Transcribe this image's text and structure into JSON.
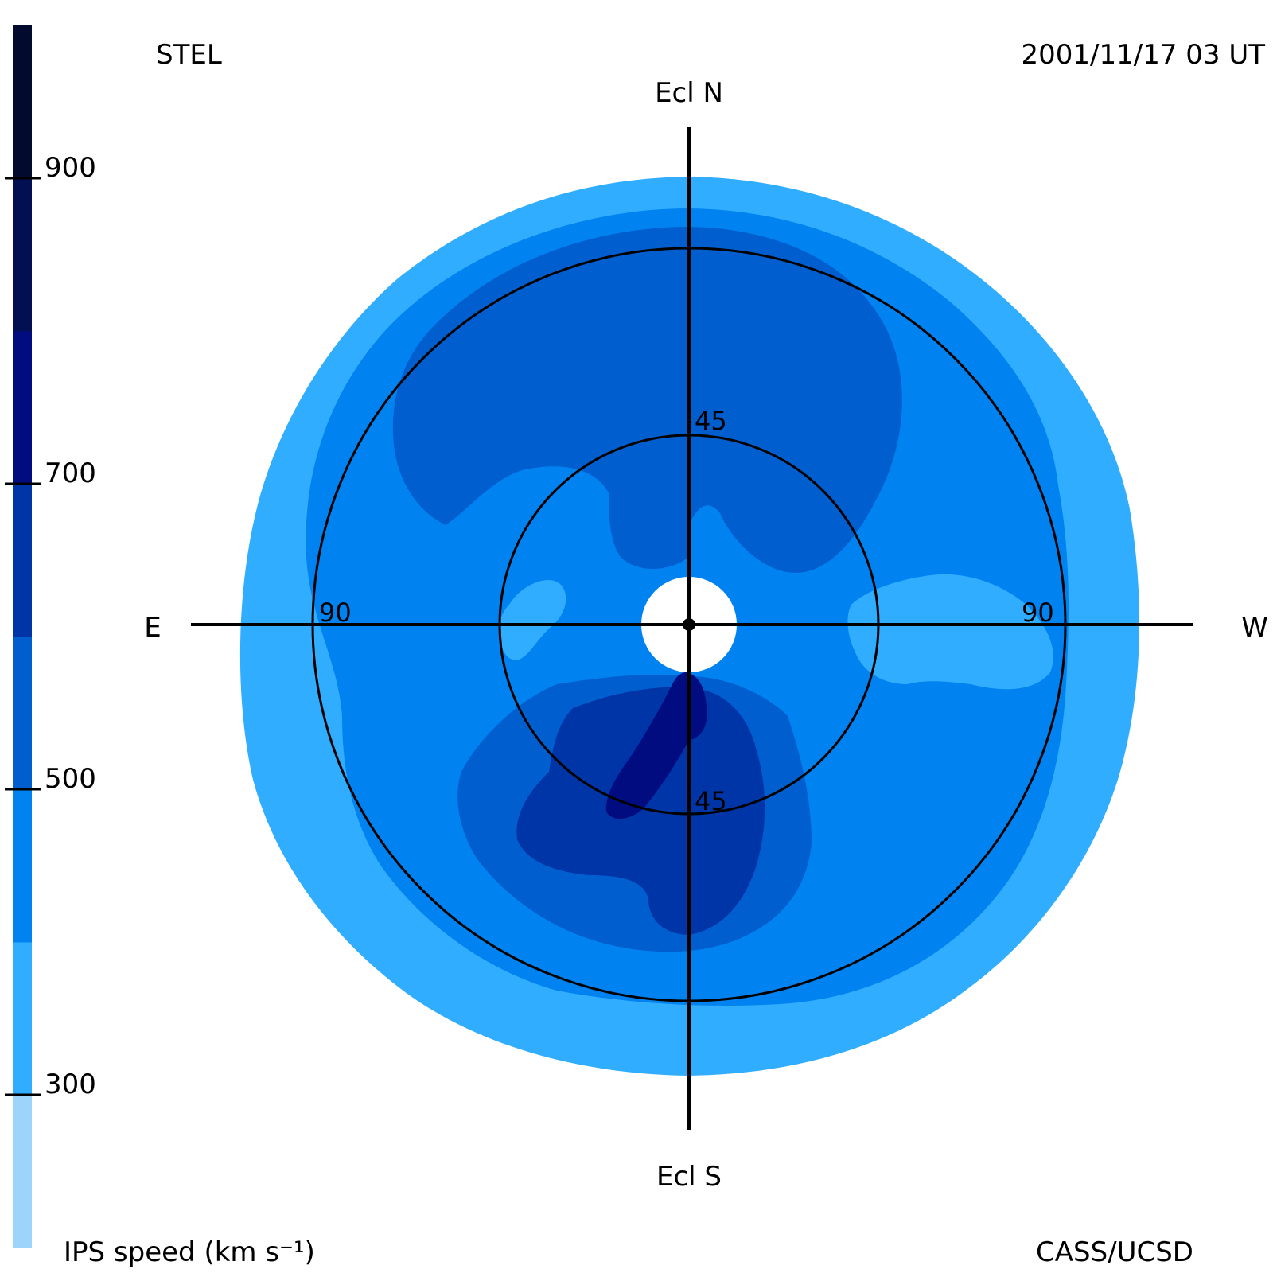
{
  "chart_data": {
    "type": "heatmap",
    "projection": "fisheye sky map",
    "title_left": "STEL",
    "title_right": "2001/11/17 03 UT",
    "credit": "CASS/UCSD",
    "colorbar": {
      "label": "IPS speed (km s⁻¹)",
      "range": [
        200,
        1000
      ],
      "ticks": [
        {
          "value": 900,
          "label": "900"
        },
        {
          "value": 700,
          "label": "700"
        },
        {
          "value": 500,
          "label": "500"
        },
        {
          "value": 300,
          "label": "300"
        }
      ],
      "bins": [
        {
          "min": 200,
          "max": 300,
          "color": "#9cd4fc"
        },
        {
          "min": 300,
          "max": 400,
          "color": "#31adff"
        },
        {
          "min": 400,
          "max": 500,
          "color": "#0083f0"
        },
        {
          "min": 500,
          "max": 600,
          "color": "#005ecf"
        },
        {
          "min": 600,
          "max": 700,
          "color": "#0035a8"
        },
        {
          "min": 700,
          "max": 800,
          "color": "#000c80"
        },
        {
          "min": 800,
          "max": 900,
          "color": "#021053"
        },
        {
          "min": 900,
          "max": 1000,
          "color": "#020a2e"
        }
      ]
    },
    "directions": {
      "north": "Ecl N",
      "south": "Ecl S",
      "east": "E",
      "west": "W"
    },
    "elongation_circles": [
      {
        "value": 45,
        "labels": [
          "45",
          "45"
        ]
      },
      {
        "value": 90,
        "labels": [
          "90",
          "90"
        ]
      }
    ],
    "map_outer_elongation": 108,
    "sun_occulted_elongation": 11,
    "regions": [
      {
        "speed": 350,
        "color": "#31adff",
        "extent_elongation": 108
      },
      {
        "speed": 450,
        "color": "#0083f0",
        "extent_elongation": 100
      },
      {
        "speed": 550,
        "color": "#005ecf",
        "note": "northern lobe"
      },
      {
        "speed": 550,
        "color": "#005ecf",
        "note": "southern lobe"
      },
      {
        "speed": 650,
        "color": "#0035a8",
        "note": "south-southeast"
      },
      {
        "speed": 750,
        "color": "#000c80",
        "note": "south near sun"
      },
      {
        "speed": 350,
        "color": "#31adff",
        "note": "west near ecliptic"
      },
      {
        "speed": 350,
        "color": "#31adff",
        "note": "east near ecliptic"
      }
    ]
  }
}
